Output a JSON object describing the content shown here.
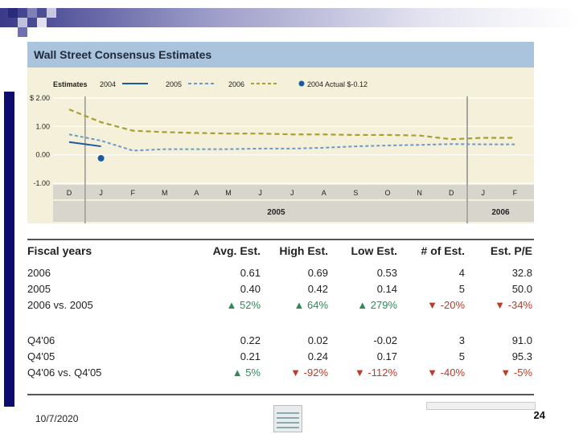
{
  "slide": {
    "date": "10/7/2020",
    "page_number": "24"
  },
  "chart_data": {
    "type": "line",
    "title": "Wall Street Consensus Estimates",
    "legend_title": "Estimates",
    "legend": [
      {
        "name": "2004",
        "color": "#1a5a9e",
        "style": "solid"
      },
      {
        "name": "2005",
        "color": "#6a9ac8",
        "style": "dashed"
      },
      {
        "name": "2006",
        "color": "#a8a030",
        "style": "dashed"
      },
      {
        "name": "2004 Actual $-0.12",
        "color": "#1a5a9e",
        "style": "dot"
      }
    ],
    "yticks": [
      "$ 2.00",
      "1.00",
      "0.00",
      "-1.00"
    ],
    "ylim": [
      -1.0,
      2.0
    ],
    "x_months": [
      "D",
      "J",
      "F",
      "M",
      "A",
      "M",
      "J",
      "J",
      "A",
      "S",
      "O",
      "N",
      "D",
      "J",
      "F"
    ],
    "x_years": [
      "2005",
      "2006"
    ],
    "series": [
      {
        "name": "2004",
        "x": [
          0,
          1
        ],
        "values": [
          0.45,
          0.3
        ]
      },
      {
        "name": "2005",
        "x": [
          0,
          1,
          2,
          3,
          4,
          5,
          6,
          7,
          8,
          9,
          10,
          11,
          12,
          13,
          14
        ],
        "values": [
          0.72,
          0.5,
          0.15,
          0.2,
          0.2,
          0.2,
          0.22,
          0.22,
          0.25,
          0.3,
          0.33,
          0.35,
          0.38,
          0.37,
          0.37
        ]
      },
      {
        "name": "2006",
        "x": [
          0,
          1,
          2,
          3,
          4,
          5,
          6,
          7,
          8,
          9,
          10,
          11,
          12,
          13,
          14
        ],
        "values": [
          1.6,
          1.15,
          0.85,
          0.8,
          0.77,
          0.75,
          0.75,
          0.72,
          0.72,
          0.7,
          0.7,
          0.68,
          0.55,
          0.6,
          0.6
        ]
      },
      {
        "name": "2004 Actual",
        "x": [
          1
        ],
        "values": [
          -0.12
        ]
      }
    ]
  },
  "table": {
    "headers": [
      "Fiscal years",
      "Avg. Est.",
      "High Est.",
      "Low Est.",
      "# of Est.",
      "Est. P/E"
    ],
    "rows": [
      [
        "2006",
        "0.61",
        "0.69",
        "0.53",
        "4",
        "32.8"
      ],
      [
        "2005",
        "0.40",
        "0.42",
        "0.14",
        "5",
        "50.0"
      ],
      [
        "2006 vs. 2005",
        "▲ 52%",
        "▲ 64%",
        "▲ 279%",
        "▼ -20%",
        "▼ -34%"
      ],
      [
        "Q4'06",
        "0.22",
        "0.02",
        "-0.02",
        "3",
        "91.0"
      ],
      [
        "Q4'05",
        "0.21",
        "0.24",
        "0.17",
        "5",
        "95.3"
      ],
      [
        "Q4'06 vs. Q4'05",
        "▲ 5%",
        "▼ -92%",
        "▼ -112%",
        "▼ -40%",
        "▼ -5%"
      ]
    ]
  }
}
